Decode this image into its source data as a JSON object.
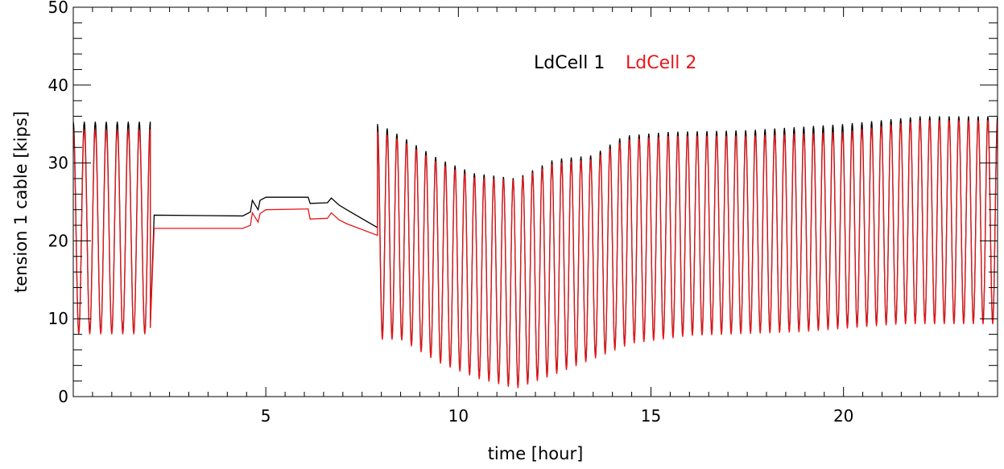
{
  "chart_data": {
    "type": "line",
    "title": "",
    "xlabel": "time [hour]",
    "ylabel": "tension 1 cable [kips]",
    "xlim": [
      0,
      24
    ],
    "ylim": [
      0,
      50
    ],
    "x_ticks": [
      5,
      10,
      15,
      20
    ],
    "y_ticks": [
      0,
      10,
      20,
      30,
      40,
      50
    ],
    "grid": false,
    "legend_placement": "top-center",
    "series": [
      {
        "name": "LdCell 1",
        "color": "#000000",
        "segments": [
          {
            "kind": "oscillation",
            "x": [
              0.0,
              2.0
            ],
            "cycles": 7,
            "max": 35.3,
            "min": 8.2
          },
          {
            "kind": "steady",
            "x": [
              2.0,
              2.1,
              4.4,
              4.6,
              4.65,
              4.8,
              4.85,
              5.0,
              6.1,
              6.15,
              6.6,
              6.7,
              6.9,
              7.1,
              7.9
            ],
            "y": [
              9.0,
              23.3,
              23.2,
              23.7,
              25.2,
              24.0,
              25.2,
              25.6,
              25.6,
              24.8,
              24.9,
              25.5,
              24.6,
              24.0,
              21.7
            ]
          },
          {
            "kind": "oscillation",
            "x": [
              7.9,
              24.0
            ],
            "cycles": 64,
            "peak_points": [
              [
                7.95,
                35.0
              ],
              [
                8.5,
                33.5
              ],
              [
                9.5,
                30.5
              ],
              [
                10.4,
                28.7
              ],
              [
                11.5,
                28.0
              ],
              [
                12.5,
                30.5
              ],
              [
                13.5,
                31.0
              ],
              [
                14.3,
                33.5
              ],
              [
                15.5,
                34.0
              ],
              [
                17.5,
                34.2
              ],
              [
                20.0,
                35.0
              ],
              [
                22.0,
                36.0
              ],
              [
                24.0,
                36.0
              ]
            ],
            "valley_points": [
              [
                7.95,
                8.0
              ],
              [
                8.5,
                7.5
              ],
              [
                9.5,
                4.5
              ],
              [
                10.5,
                2.5
              ],
              [
                11.5,
                1.2
              ],
              [
                12.5,
                3.0
              ],
              [
                13.5,
                5.0
              ],
              [
                14.5,
                7.0
              ],
              [
                16.0,
                8.0
              ],
              [
                19.0,
                8.5
              ],
              [
                21.5,
                9.5
              ],
              [
                24.0,
                9.5
              ]
            ]
          }
        ]
      },
      {
        "name": "LdCell 2",
        "color": "#e8171b",
        "segments": [
          {
            "kind": "oscillation",
            "x": [
              0.0,
              2.0
            ],
            "cycles": 7,
            "max": 34.3,
            "min": 8.0
          },
          {
            "kind": "steady",
            "x": [
              2.0,
              2.1,
              4.4,
              4.6,
              4.65,
              4.8,
              4.85,
              5.0,
              6.1,
              6.15,
              6.6,
              6.7,
              6.9,
              7.1,
              7.9
            ],
            "y": [
              8.8,
              21.6,
              21.6,
              22.0,
              23.6,
              22.4,
              23.5,
              24.0,
              24.1,
              22.8,
              22.9,
              23.6,
              22.7,
              22.2,
              20.7
            ]
          },
          {
            "kind": "oscillation",
            "x": [
              7.9,
              24.0
            ],
            "cycles": 64,
            "peak_points": [
              [
                7.95,
                34.0
              ],
              [
                8.5,
                33.0
              ],
              [
                9.5,
                30.0
              ],
              [
                10.4,
                28.2
              ],
              [
                11.5,
                27.8
              ],
              [
                12.5,
                30.0
              ],
              [
                13.5,
                30.5
              ],
              [
                14.3,
                33.0
              ],
              [
                15.5,
                33.5
              ],
              [
                17.5,
                33.5
              ],
              [
                20.0,
                34.0
              ],
              [
                22.0,
                35.5
              ],
              [
                24.0,
                35.5
              ]
            ],
            "valley_points": [
              [
                7.95,
                7.3
              ],
              [
                8.5,
                7.3
              ],
              [
                9.5,
                4.3
              ],
              [
                10.5,
                2.3
              ],
              [
                11.5,
                1.0
              ],
              [
                12.5,
                2.8
              ],
              [
                13.5,
                4.8
              ],
              [
                14.5,
                6.8
              ],
              [
                16.0,
                7.8
              ],
              [
                19.0,
                8.3
              ],
              [
                21.5,
                9.3
              ],
              [
                24.0,
                9.3
              ]
            ]
          }
        ]
      }
    ],
    "legend": [
      "LdCell 1",
      "LdCell 2"
    ]
  }
}
